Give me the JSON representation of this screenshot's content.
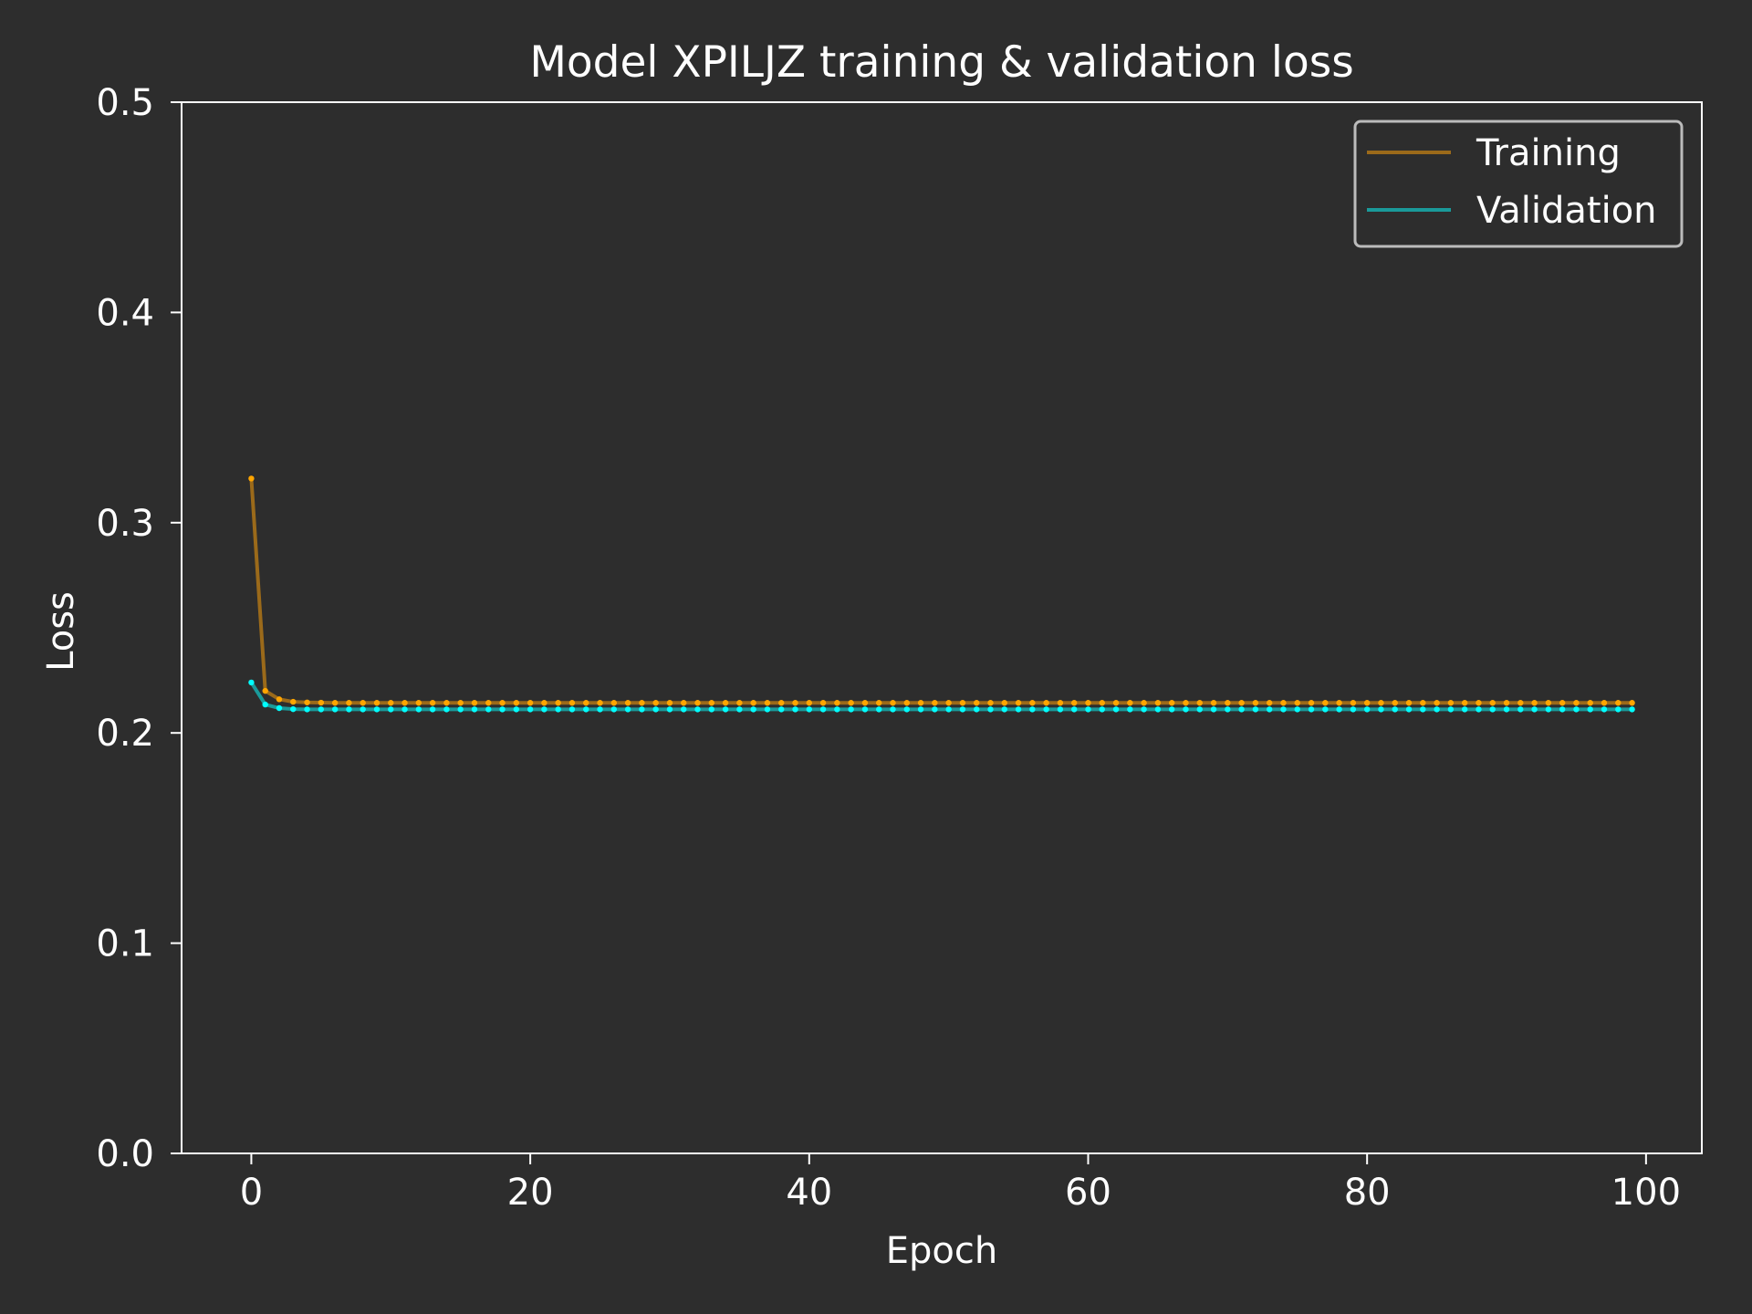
{
  "chart_data": {
    "type": "line",
    "title": "Model XPILJZ training & validation loss",
    "xlabel": "Epoch",
    "ylabel": "Loss",
    "xlim": [
      -5,
      104
    ],
    "ylim": [
      0.0,
      0.5
    ],
    "xticks": [
      0,
      20,
      40,
      60,
      80,
      100
    ],
    "xtick_labels": [
      "0",
      "20",
      "40",
      "60",
      "80",
      "100"
    ],
    "yticks": [
      0.0,
      0.1,
      0.2,
      0.3,
      0.4,
      0.5
    ],
    "ytick_labels": [
      "0.0",
      "0.1",
      "0.2",
      "0.3",
      "0.4",
      "0.5"
    ],
    "grid": false,
    "legend_position": "top-right",
    "x": [
      0,
      1,
      2,
      3,
      4,
      5,
      6,
      7,
      8,
      9,
      10,
      11,
      12,
      13,
      14,
      15,
      16,
      17,
      18,
      19,
      20,
      21,
      22,
      23,
      24,
      25,
      26,
      27,
      28,
      29,
      30,
      31,
      32,
      33,
      34,
      35,
      36,
      37,
      38,
      39,
      40,
      41,
      42,
      43,
      44,
      45,
      46,
      47,
      48,
      49,
      50,
      51,
      52,
      53,
      54,
      55,
      56,
      57,
      58,
      59,
      60,
      61,
      62,
      63,
      64,
      65,
      66,
      67,
      68,
      69,
      70,
      71,
      72,
      73,
      74,
      75,
      76,
      77,
      78,
      79,
      80,
      81,
      82,
      83,
      84,
      85,
      86,
      87,
      88,
      89,
      90,
      91,
      92,
      93,
      94,
      95,
      96,
      97,
      98,
      99
    ],
    "series": [
      {
        "name": "Training",
        "line_color": "#9b6a1a",
        "marker_color": "#ffa500",
        "label_color": "#ffa500",
        "values": [
          0.321,
          0.22,
          0.216,
          0.2148,
          0.2145,
          0.2144,
          0.2143,
          0.2143,
          0.2143,
          0.2143,
          0.2143,
          0.2143,
          0.2143,
          0.2143,
          0.2143,
          0.2143,
          0.2143,
          0.2143,
          0.2143,
          0.2143,
          0.2143,
          0.2143,
          0.2143,
          0.2143,
          0.2143,
          0.2143,
          0.2143,
          0.2143,
          0.2143,
          0.2143,
          0.2143,
          0.2143,
          0.2143,
          0.2143,
          0.2143,
          0.2143,
          0.2143,
          0.2143,
          0.2143,
          0.2143,
          0.2143,
          0.2143,
          0.2143,
          0.2143,
          0.2143,
          0.2143,
          0.2143,
          0.2143,
          0.2143,
          0.2143,
          0.2143,
          0.2143,
          0.2143,
          0.2143,
          0.2143,
          0.2143,
          0.2143,
          0.2143,
          0.2143,
          0.2143,
          0.2143,
          0.2143,
          0.2143,
          0.2143,
          0.2143,
          0.2143,
          0.2143,
          0.2143,
          0.2143,
          0.2143,
          0.2143,
          0.2143,
          0.2143,
          0.2143,
          0.2143,
          0.2143,
          0.2143,
          0.2143,
          0.2143,
          0.2143,
          0.2143,
          0.2143,
          0.2143,
          0.2143,
          0.2143,
          0.2143,
          0.2143,
          0.2143,
          0.2143,
          0.2143,
          0.2143,
          0.2143,
          0.2143,
          0.2143,
          0.2143,
          0.2143,
          0.2143,
          0.2143,
          0.2143,
          0.2143
        ]
      },
      {
        "name": "Validation",
        "line_color": "#1a9a9a",
        "marker_color": "#00ffff",
        "label_color": "#00ffff",
        "values": [
          0.224,
          0.2135,
          0.2118,
          0.2113,
          0.2112,
          0.2112,
          0.2112,
          0.2112,
          0.2112,
          0.2112,
          0.2112,
          0.2112,
          0.2112,
          0.2112,
          0.2112,
          0.2112,
          0.2112,
          0.2112,
          0.2112,
          0.2112,
          0.2112,
          0.2112,
          0.2112,
          0.2112,
          0.2112,
          0.2112,
          0.2112,
          0.2112,
          0.2112,
          0.2112,
          0.2112,
          0.2112,
          0.2112,
          0.2112,
          0.2112,
          0.2112,
          0.2112,
          0.2112,
          0.2112,
          0.2112,
          0.2112,
          0.2112,
          0.2112,
          0.2112,
          0.2112,
          0.2112,
          0.2112,
          0.2112,
          0.2112,
          0.2112,
          0.2112,
          0.2112,
          0.2112,
          0.2112,
          0.2112,
          0.2112,
          0.2112,
          0.2112,
          0.2112,
          0.2112,
          0.2112,
          0.2112,
          0.2112,
          0.2112,
          0.2112,
          0.2112,
          0.2112,
          0.2112,
          0.2112,
          0.2112,
          0.2112,
          0.2112,
          0.2112,
          0.2112,
          0.2112,
          0.2112,
          0.2112,
          0.2112,
          0.2112,
          0.2112,
          0.2112,
          0.2112,
          0.2112,
          0.2112,
          0.2112,
          0.2112,
          0.2112,
          0.2112,
          0.2112,
          0.2112,
          0.2112,
          0.2112,
          0.2112,
          0.2112,
          0.2112,
          0.2112,
          0.2112,
          0.2112,
          0.2112,
          0.2112
        ]
      }
    ]
  },
  "colors": {
    "background": "#2d2d2d",
    "axes": "#ffffff",
    "legend_border": "#bbbbbb"
  }
}
